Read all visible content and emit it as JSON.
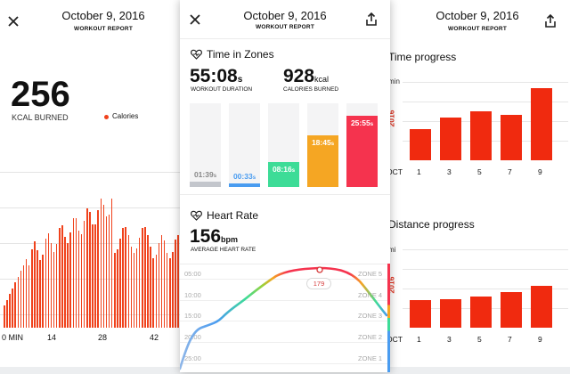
{
  "left": {
    "date": "October 9, 2016",
    "subtitle": "WORKOUT REPORT",
    "kcal_value": "256",
    "kcal_label": "KCAL BURNED",
    "legend_label": "Calories",
    "x_ticks": [
      "0 MIN",
      "14",
      "28",
      "42"
    ],
    "colors": {
      "bar": "#f0421c"
    }
  },
  "center": {
    "date": "October 9, 2016",
    "subtitle": "WORKOUT REPORT",
    "zones_title": "Time in Zones",
    "duration": {
      "value": "55:08",
      "unit": "s",
      "label": "WORKOUT DURATION"
    },
    "calories": {
      "value": "928",
      "unit": "kcal",
      "label": "CALORIES BURNED"
    },
    "zones": [
      {
        "label": "01:39",
        "unit": "s",
        "fraction": 0.06,
        "color": "#c3c6cc"
      },
      {
        "label": "00:33",
        "unit": "s",
        "fraction": 0.04,
        "color": "#4a9cf0"
      },
      {
        "label": "08:16",
        "unit": "s",
        "fraction": 0.3,
        "color": "#3ddc97"
      },
      {
        "label": "18:45",
        "unit": "s",
        "fraction": 0.62,
        "color": "#f5a623"
      },
      {
        "label": "25:55",
        "unit": "s",
        "fraction": 0.85,
        "color": "#f5334e"
      }
    ],
    "hr_title": "Heart Rate",
    "hr": {
      "value": "156",
      "unit": "bpm",
      "label": "AVERAGE HEART RATE"
    },
    "hr_times": [
      "05:00",
      "10:00",
      "15:00",
      "20:00",
      "25:00"
    ],
    "hr_zones": [
      "ZONE 5",
      "ZONE 4",
      "ZONE 3",
      "ZONE 2",
      "ZONE 1"
    ],
    "hr_peak": "179"
  },
  "right": {
    "date": "October 9, 2016",
    "subtitle": "WORKOUT REPORT",
    "time_title": "Time progress",
    "time_unit": "min",
    "year": "2016",
    "oct": "OCT",
    "time_ticks": [
      "1",
      "3",
      "5",
      "7",
      "9"
    ],
    "time_values": [
      0.4,
      0.55,
      0.63,
      0.58,
      0.92
    ],
    "distance_title": "Distance progress",
    "distance_unit": "mi",
    "distance_values": [
      0.35,
      0.36,
      0.4,
      0.45,
      0.53
    ],
    "distance_ticks": [
      "1",
      "3",
      "5",
      "7",
      "9"
    ],
    "colors": {
      "bar": "#f02a0f",
      "year": "#e0301e"
    }
  }
}
